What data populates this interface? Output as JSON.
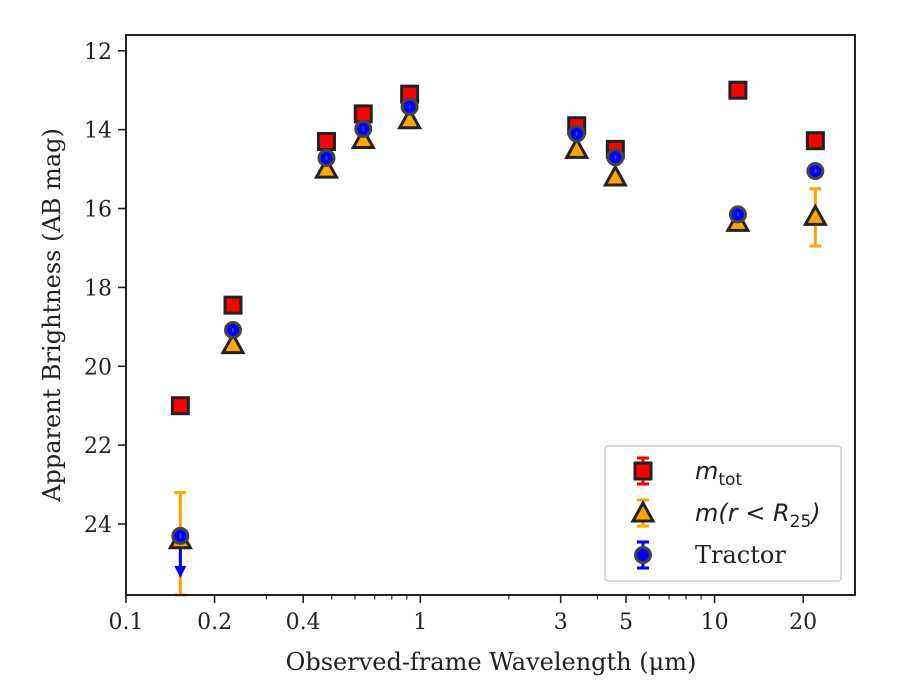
{
  "chart_data": {
    "type": "scatter",
    "title": "",
    "xlabel": "Observed-frame Wavelength (μm)",
    "ylabel": "Apparent Brightness (AB mag)",
    "xscale": "log",
    "xlim": [
      0.1,
      30
    ],
    "ylim": [
      25.8,
      11.6
    ],
    "y_inverted": true,
    "x_ticks": [
      0.1,
      0.2,
      0.4,
      1,
      3,
      5,
      10,
      20
    ],
    "x_tick_labels": [
      "0.1",
      "0.2",
      "0.4",
      "1",
      "3",
      "5",
      "10",
      "20"
    ],
    "y_ticks": [
      12,
      14,
      16,
      18,
      20,
      22,
      24
    ],
    "y_tick_labels": [
      "12",
      "14",
      "16",
      "18",
      "20",
      "22",
      "24"
    ],
    "legend_position": "lower-right",
    "series": [
      {
        "name": "m_tot",
        "legend_main": "m",
        "legend_sub": "tot",
        "marker": "square",
        "color": "#ff0000",
        "edge_color": "#222222",
        "points": [
          {
            "x": 0.153,
            "y": 21.0
          },
          {
            "x": 0.231,
            "y": 18.45
          },
          {
            "x": 0.48,
            "y": 14.3
          },
          {
            "x": 0.64,
            "y": 13.6
          },
          {
            "x": 0.92,
            "y": 13.1
          },
          {
            "x": 3.4,
            "y": 13.9
          },
          {
            "x": 4.6,
            "y": 14.5
          },
          {
            "x": 12.0,
            "y": 13.0
          },
          {
            "x": 22.0,
            "y": 14.28
          }
        ]
      },
      {
        "name": "m(r<R25)",
        "legend_main": "m(r < R",
        "legend_sub": "25",
        "legend_tail": ")",
        "marker": "triangle",
        "color": "#ffa500",
        "edge_color": "#222222",
        "points": [
          {
            "x": 0.153,
            "y": 24.4,
            "yerr": [
              23.2,
              25.8
            ]
          },
          {
            "x": 0.231,
            "y": 19.45
          },
          {
            "x": 0.48,
            "y": 15.0
          },
          {
            "x": 0.64,
            "y": 14.25
          },
          {
            "x": 0.92,
            "y": 13.75
          },
          {
            "x": 3.4,
            "y": 14.5
          },
          {
            "x": 4.6,
            "y": 15.2
          },
          {
            "x": 12.0,
            "y": 16.35
          },
          {
            "x": 22.0,
            "y": 16.2,
            "yerr": [
              15.5,
              16.95
            ]
          }
        ]
      },
      {
        "name": "Tractor",
        "legend_main": "Tractor",
        "marker": "circle",
        "color": "#0000ff",
        "edge_color": "#444444",
        "points": [
          {
            "x": 0.153,
            "y": 24.3,
            "upper_limit": true
          },
          {
            "x": 0.231,
            "y": 19.08
          },
          {
            "x": 0.48,
            "y": 14.72
          },
          {
            "x": 0.64,
            "y": 13.98
          },
          {
            "x": 0.92,
            "y": 13.42
          },
          {
            "x": 3.4,
            "y": 14.1
          },
          {
            "x": 4.6,
            "y": 14.7
          },
          {
            "x": 12.0,
            "y": 16.15
          },
          {
            "x": 22.0,
            "y": 15.05
          }
        ]
      }
    ]
  }
}
